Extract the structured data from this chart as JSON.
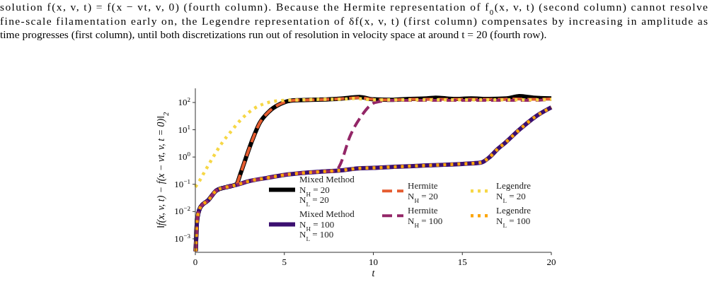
{
  "chart_data": {
    "type": "line",
    "annotations": [
      "solution f(x, v, t) = f(x − vt, v, 0) (fourth column). Because the Hermite representation of f$_{0}$(x, v, t) (second column) cannot resolve",
      "fine-scale filamentation early on, the Legendre representation of δf(x, v, t) (first column) compensates by increasing in amplitude as",
      "time progresses (first column), until both discretizations run out of resolution in velocity space at around t = 20 (fourth row)."
    ],
    "xlabel": "t",
    "ylabel": "‖f(x, v, t) − f(x − vt, v, t = 0)‖$_{2}$",
    "xlim": [
      0,
      20
    ],
    "xticks": [
      0,
      5,
      10,
      15,
      20
    ],
    "ylim": [
      0.00032,
      330
    ],
    "yticks": [
      {
        "value": 0.001,
        "label": "10$^{−3}$"
      },
      {
        "value": 0.01,
        "label": "10$^{−2}$"
      },
      {
        "value": 0.1,
        "label": "10$^{−1}$"
      },
      {
        "value": 1,
        "label": "10$^{0}$"
      },
      {
        "value": 10,
        "label": "10$^{1}$"
      },
      {
        "value": 100,
        "label": "10$^{2}$"
      }
    ],
    "log": "y",
    "legend": "bottom",
    "series": [
      {
        "name": "Mixed Method\nN$_{H}$ = 20\nN$_{L}$ = 20",
        "color": "#000000",
        "line_style": "solid",
        "x": [
          0.02,
          0.1,
          0.3,
          0.7,
          1.2,
          1.8,
          2.3,
          2.55,
          2.82,
          3.22,
          3.6,
          4.13,
          4.8,
          5.5,
          6.5,
          7.5,
          8.5,
          9.2,
          10,
          11,
          12,
          13,
          13.5,
          14.5,
          15.5,
          16.5,
          17.5,
          18.2,
          19,
          20
        ],
        "values": [
          0.00035,
          0.005,
          0.015,
          0.025,
          0.06,
          0.08,
          0.1,
          0.26,
          0.85,
          4.5,
          17,
          46,
          90,
          120,
          125,
          130,
          145,
          160,
          130,
          125,
          135,
          140,
          150,
          135,
          140,
          135,
          140,
          170,
          150,
          140
        ]
      },
      {
        "name": "Mixed Method\nN$_{H}$ = 100\nN$_{L}$ = 100",
        "color": "#3b0f70",
        "line_style": "solid",
        "x": [
          0.02,
          0.1,
          0.3,
          0.7,
          1.2,
          1.8,
          2.3,
          3,
          4,
          5,
          6,
          7,
          8.1,
          9.3,
          10,
          11,
          12,
          13,
          14,
          15,
          16.06,
          16.5,
          17,
          17.4,
          18.2,
          19.1,
          20
        ],
        "values": [
          0.00035,
          0.005,
          0.015,
          0.025,
          0.06,
          0.08,
          0.095,
          0.13,
          0.17,
          0.22,
          0.26,
          0.29,
          0.32,
          0.39,
          0.4,
          0.43,
          0.46,
          0.49,
          0.52,
          0.56,
          0.63,
          0.95,
          2,
          3.3,
          10,
          30,
          66
        ]
      },
      {
        "name": "Hermite\nN$_{H}$ = 20",
        "color": "#e55c30",
        "line_style": "dashed",
        "x": [
          0.02,
          0.1,
          0.3,
          0.7,
          1.2,
          1.8,
          2.3,
          2.55,
          2.82,
          3.22,
          3.6,
          4.13,
          4.8,
          5.5,
          6.5,
          7.5,
          8.5,
          9.2,
          10,
          11,
          12,
          13,
          14,
          15,
          16,
          17,
          18,
          19,
          20
        ],
        "values": [
          0.00035,
          0.005,
          0.015,
          0.025,
          0.06,
          0.08,
          0.1,
          0.26,
          0.85,
          4.5,
          17,
          46,
          90,
          120,
          125,
          130,
          140,
          150,
          130,
          125,
          130,
          130,
          130,
          130,
          130,
          130,
          135,
          130,
          135
        ]
      },
      {
        "name": "Hermite\nN$_{H}$ = 100",
        "color": "#932667",
        "line_style": "dashed",
        "x": [
          0.02,
          0.1,
          0.3,
          0.7,
          1.2,
          1.8,
          2.3,
          3,
          4,
          5,
          6,
          7,
          7.9,
          8.1,
          8.7,
          9.3,
          10.1,
          11,
          12,
          13,
          14,
          15,
          16,
          17,
          18,
          19,
          20
        ],
        "values": [
          0.00035,
          0.005,
          0.015,
          0.025,
          0.06,
          0.08,
          0.095,
          0.13,
          0.17,
          0.22,
          0.26,
          0.29,
          0.31,
          0.47,
          6,
          30,
          100,
          120,
          120,
          120,
          120,
          120,
          120,
          120,
          120,
          120,
          130
        ]
      },
      {
        "name": "Legendre\nN$_{L}$ = 20",
        "color": "#f6d746",
        "line_style": "dotted",
        "x": [
          0,
          0.08,
          0.56,
          1,
          1.5,
          2.03,
          2.6,
          3.34,
          4.1,
          5,
          6,
          7,
          8,
          9,
          10,
          11,
          12,
          13,
          14,
          15,
          16,
          17,
          18,
          19,
          20
        ],
        "values": [
          0.08,
          0.093,
          0.32,
          1,
          3.3,
          9.1,
          25,
          62,
          100,
          120,
          125,
          130,
          130,
          140,
          125,
          125,
          125,
          125,
          125,
          125,
          125,
          125,
          125,
          125,
          130
        ]
      },
      {
        "name": "Legendre\nN$_{L}$ = 100",
        "color": "#fca50a",
        "line_style": "dotted",
        "x": [
          0.02,
          0.1,
          0.3,
          0.7,
          1.2,
          1.8,
          2.3,
          3,
          4,
          5,
          6,
          7,
          8.1,
          9.3,
          10,
          11,
          12,
          13,
          14,
          15,
          16.06,
          16.5,
          17,
          17.4,
          18.2,
          19.1,
          20
        ],
        "values": [
          0.00035,
          0.005,
          0.015,
          0.025,
          0.06,
          0.08,
          0.095,
          0.13,
          0.17,
          0.22,
          0.26,
          0.29,
          0.32,
          0.39,
          0.4,
          0.43,
          0.46,
          0.49,
          0.52,
          0.56,
          0.63,
          0.95,
          2,
          3.3,
          10,
          30,
          66
        ]
      }
    ]
  }
}
